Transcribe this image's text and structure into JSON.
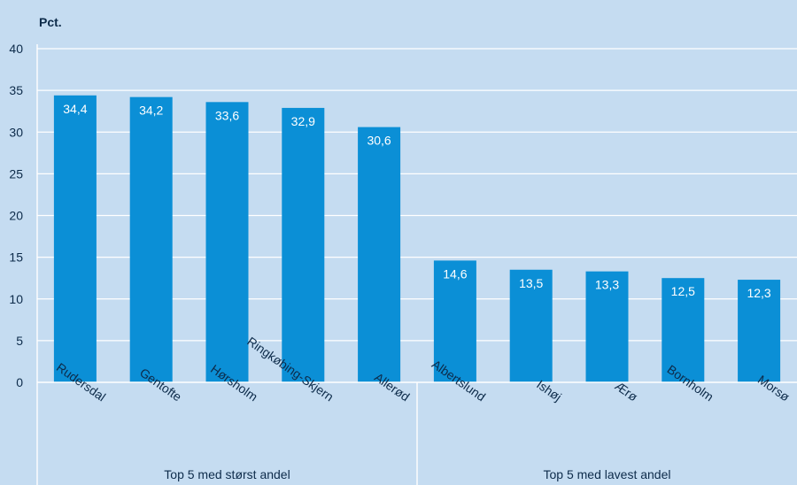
{
  "chart_data": {
    "type": "bar",
    "ylabel": "Pct.",
    "ylim": [
      0,
      40
    ],
    "yticks": [
      0,
      5,
      10,
      15,
      20,
      25,
      30,
      35,
      40
    ],
    "grid": true,
    "categories": [
      "Rudersdal",
      "Gentofte",
      "Hørsholm",
      "Ringkøbing-Skjern",
      "Allerød",
      "Albertslund",
      "Ishøj",
      "Ærø",
      "Bornholm",
      "Morsø"
    ],
    "values": [
      34.4,
      34.2,
      33.6,
      32.9,
      30.6,
      14.6,
      13.5,
      13.3,
      12.5,
      12.3
    ],
    "value_labels": [
      "34,4",
      "34,2",
      "33,6",
      "32,9",
      "30,6",
      "14,6",
      "13,5",
      "13,3",
      "12,5",
      "12,3"
    ],
    "groups": [
      {
        "label": "Top 5 med størst andel",
        "count": 5
      },
      {
        "label": "Top 5 med lavest andel",
        "count": 5
      }
    ],
    "colors": {
      "background": "#c5dcf1",
      "bar": "#0b8fd6",
      "grid": "#ffffff",
      "text": "#0d2b4a",
      "bar_label": "#ffffff"
    }
  }
}
